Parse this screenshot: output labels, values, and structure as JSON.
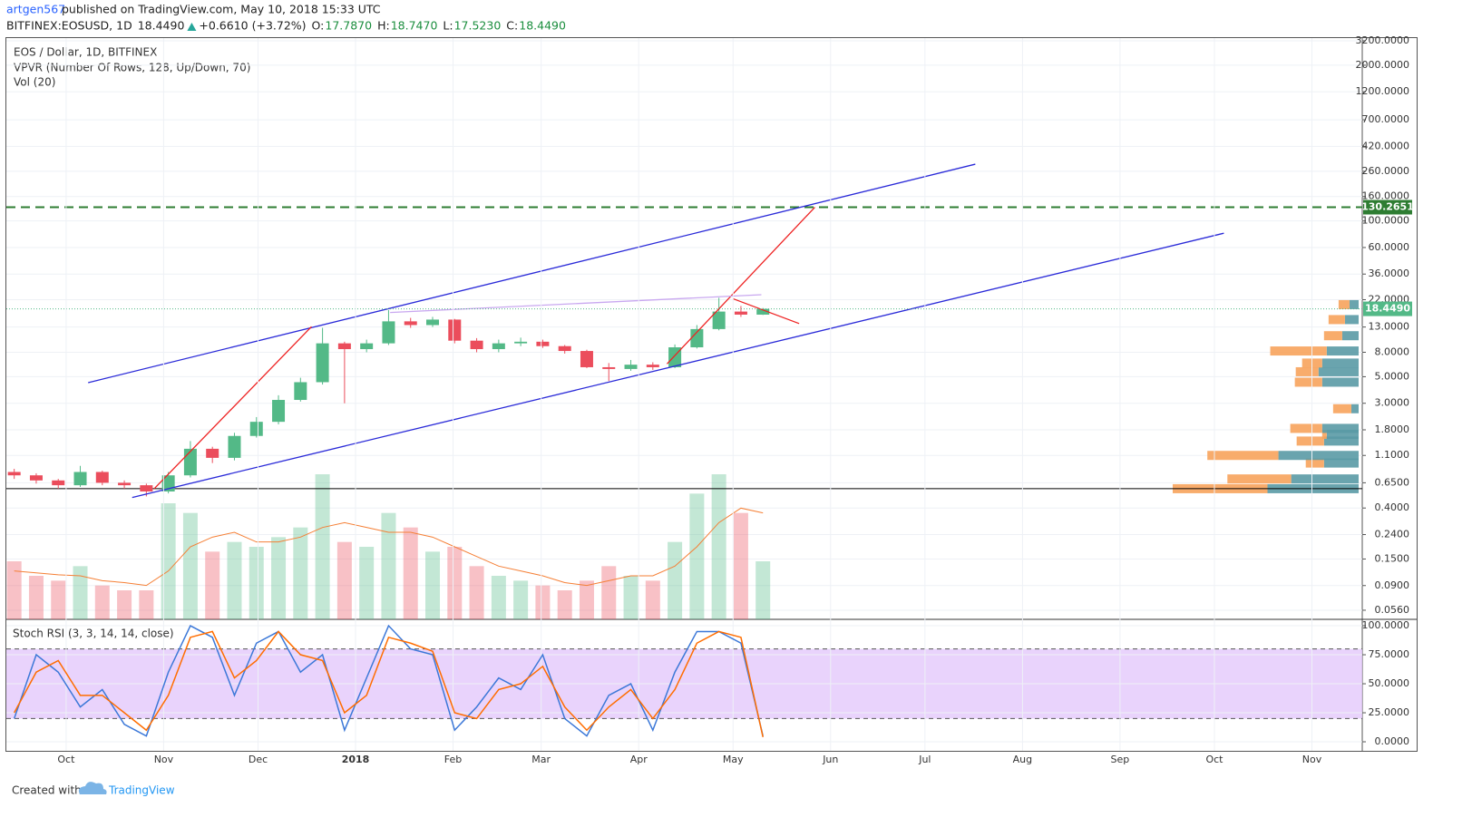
{
  "header": {
    "author": "artgen567",
    "published": "published on TradingView.com, May 10, 2018 15:33 UTC",
    "symbol": "BITFINEX:EOSUSD, 1D",
    "last": "18.4490",
    "change": "+0.6610 (+3.72%)",
    "ohlc": [
      {
        "label": "O:",
        "value": "17.7870"
      },
      {
        "label": "H:",
        "value": "18.7470"
      },
      {
        "label": "L:",
        "value": "17.5230"
      },
      {
        "label": "C:",
        "value": "18.4490"
      }
    ]
  },
  "footer": {
    "created": "Created with",
    "brand": "TradingView"
  },
  "chart_data": [
    {
      "type": "candlestick",
      "title": "EOS / Dollar, 1D, BITFINEX",
      "indicators": [
        "VPVR (Number Of Rows, 128, Up/Down, 70)",
        "Vol (20)"
      ],
      "log_scale": true,
      "grid": true,
      "x": [
        "2017-09-11",
        "2017-09-18",
        "2017-09-25",
        "2017-10-02",
        "2017-10-09",
        "2017-10-16",
        "2017-10-23",
        "2017-10-30",
        "2017-11-06",
        "2017-11-13",
        "2017-11-20",
        "2017-11-27",
        "2017-12-04",
        "2017-12-11",
        "2017-12-18",
        "2017-12-25",
        "2018-01-01",
        "2018-01-08",
        "2018-01-15",
        "2018-01-22",
        "2018-01-29",
        "2018-02-05",
        "2018-02-12",
        "2018-02-19",
        "2018-02-26",
        "2018-03-05",
        "2018-03-12",
        "2018-03-19",
        "2018-03-26",
        "2018-04-02",
        "2018-04-09",
        "2018-04-16",
        "2018-04-23",
        "2018-04-30",
        "2018-05-07"
      ],
      "open": [
        0.8,
        0.75,
        0.68,
        0.62,
        0.8,
        0.65,
        0.62,
        0.55,
        0.75,
        1.25,
        1.05,
        1.6,
        2.1,
        3.2,
        4.5,
        9.5,
        8.5,
        9.5,
        14.5,
        13.5,
        15,
        10,
        8.5,
        9.5,
        9.8,
        9.0,
        8.2,
        6.0,
        5.8,
        6.3,
        6.0,
        8.8,
        12.5,
        17.5,
        16.5
      ],
      "high": [
        0.85,
        0.78,
        0.7,
        0.9,
        0.82,
        0.68,
        0.64,
        0.8,
        1.45,
        1.3,
        1.7,
        2.3,
        3.5,
        4.9,
        12.8,
        9.8,
        10.2,
        18.0,
        15.5,
        15.8,
        15.2,
        10.5,
        10.2,
        10.6,
        10.2,
        9.2,
        8.4,
        6.5,
        6.9,
        6.6,
        9.3,
        13.5,
        22.8,
        19.5,
        18.747
      ],
      "low": [
        0.7,
        0.64,
        0.58,
        0.6,
        0.62,
        0.58,
        0.5,
        0.53,
        0.72,
        0.95,
        1.0,
        1.55,
        2.0,
        3.1,
        4.3,
        3.0,
        8.0,
        9.2,
        12.8,
        13.0,
        9.5,
        8.0,
        8.0,
        9.0,
        8.7,
        7.8,
        5.9,
        4.6,
        5.6,
        5.7,
        5.9,
        8.6,
        12.2,
        15.8,
        16.4
      ],
      "close": [
        0.75,
        0.68,
        0.62,
        0.8,
        0.65,
        0.62,
        0.55,
        0.75,
        1.25,
        1.05,
        1.6,
        2.1,
        3.2,
        4.5,
        9.5,
        8.5,
        9.5,
        14.5,
        13.5,
        15,
        10,
        8.5,
        9.5,
        9.8,
        9.0,
        8.2,
        6.0,
        5.8,
        6.3,
        6.0,
        8.8,
        12.5,
        17.5,
        16.5,
        18.449
      ],
      "up_color": "#53b987",
      "down_color": "#eb4d5c",
      "volume": {
        "values": [
          60,
          45,
          40,
          55,
          35,
          30,
          30,
          120,
          110,
          70,
          80,
          75,
          85,
          95,
          150,
          80,
          75,
          110,
          95,
          70,
          75,
          55,
          45,
          40,
          35,
          30,
          40,
          55,
          45,
          40,
          80,
          130,
          150,
          110,
          60
        ],
        "ma": [
          50,
          48,
          46,
          45,
          40,
          38,
          35,
          50,
          75,
          85,
          90,
          80,
          80,
          85,
          95,
          100,
          95,
          90,
          90,
          85,
          75,
          65,
          55,
          50,
          45,
          38,
          35,
          40,
          45,
          45,
          55,
          75,
          100,
          115,
          110
        ],
        "ma_color": "#f57f35"
      },
      "vpvr": {
        "prices": [
          0.58,
          0.7,
          0.95,
          1.1,
          1.45,
          1.65,
          1.85,
          2.7,
          4.5,
          5.5,
          6.5,
          8.2,
          11,
          15,
          20
        ],
        "up": [
          100,
          74,
          38,
          88,
          38,
          35,
          40,
          8,
          40,
          44,
          40,
          35,
          18,
          15,
          10
        ],
        "down": [
          104,
          70,
          20,
          78,
          30,
          5,
          35,
          20,
          30,
          25,
          22,
          62,
          20,
          18,
          12
        ],
        "up_color": "#5a9aa5",
        "down_color": "#f7a35c"
      },
      "xlim": [
        "2017-09-12",
        "2018-11-17"
      ],
      "ylim": [
        0.047,
        3370
      ],
      "yticks": [
        {
          "value": 3200,
          "label": "3200.0000"
        },
        {
          "value": 2000,
          "label": "2000.0000"
        },
        {
          "value": 1200,
          "label": "1200.0000"
        },
        {
          "value": 700,
          "label": "700.0000"
        },
        {
          "value": 420,
          "label": "420.0000"
        },
        {
          "value": 260,
          "label": "260.0000"
        },
        {
          "value": 160,
          "label": "160.0000"
        },
        {
          "value": 100,
          "label": "100.0000"
        },
        {
          "value": 60,
          "label": "60.0000"
        },
        {
          "value": 36,
          "label": "36.0000"
        },
        {
          "value": 22,
          "label": "22.0000"
        },
        {
          "value": 13,
          "label": "13.0000"
        },
        {
          "value": 8,
          "label": "8.0000"
        },
        {
          "value": 5,
          "label": "5.0000"
        },
        {
          "value": 3,
          "label": "3.0000"
        },
        {
          "value": 1.8,
          "label": "1.8000"
        },
        {
          "value": 1.1,
          "label": "1.1000"
        },
        {
          "value": 0.65,
          "label": "0.6500"
        },
        {
          "value": 0.4,
          "label": "0.4000"
        },
        {
          "value": 0.24,
          "label": "0.2400"
        },
        {
          "value": 0.15,
          "label": "0.1500"
        },
        {
          "value": 0.09,
          "label": "0.0900"
        },
        {
          "value": 0.056,
          "label": "0.0560"
        }
      ],
      "last_price": {
        "value": 18.449,
        "label": "18.4490",
        "color": "#53b987"
      },
      "hlines": [
        {
          "value": 130.2651,
          "color": "#2e7d32",
          "dashed": true
        },
        {
          "value": 0.58,
          "color": "#000000",
          "dashed": false
        }
      ],
      "trendlines": [
        {
          "x": [
            "2017-10-08",
            "2018-07-17"
          ],
          "y": [
            4.46,
            298
          ],
          "color": "#2a2ad8"
        },
        {
          "x": [
            "2017-10-22",
            "2018-10-04"
          ],
          "y": [
            0.49,
            79
          ],
          "color": "#2a2ad8"
        },
        {
          "x": [
            "2017-10-29",
            "2017-12-18"
          ],
          "y": [
            0.58,
            13.1
          ],
          "color": "#ee2222"
        },
        {
          "x": [
            "2018-04-10",
            "2018-05-27"
          ],
          "y": [
            6.4,
            130.2651
          ],
          "color": "#ee2222"
        },
        {
          "x": [
            "2018-05-01",
            "2018-05-22"
          ],
          "y": [
            22.4,
            13.9
          ],
          "color": "#ee2222"
        },
        {
          "x": [
            "2018-01-12",
            "2018-05-10"
          ],
          "y": [
            17.2,
            24.2
          ],
          "color": "#c9a8f0"
        }
      ]
    },
    {
      "type": "line",
      "title": "Stoch RSI (3, 3, 14, 14, close)",
      "x": [
        "2017-09-11",
        "2017-09-18",
        "2017-09-25",
        "2017-10-02",
        "2017-10-09",
        "2017-10-16",
        "2017-10-23",
        "2017-10-30",
        "2017-11-06",
        "2017-11-13",
        "2017-11-20",
        "2017-11-27",
        "2017-12-04",
        "2017-12-11",
        "2017-12-18",
        "2017-12-25",
        "2018-01-01",
        "2018-01-08",
        "2018-01-15",
        "2018-01-22",
        "2018-01-29",
        "2018-02-05",
        "2018-02-12",
        "2018-02-19",
        "2018-02-26",
        "2018-03-05",
        "2018-03-12",
        "2018-03-19",
        "2018-03-26",
        "2018-04-02",
        "2018-04-09",
        "2018-04-16",
        "2018-04-23",
        "2018-04-30",
        "2018-05-07"
      ],
      "series": [
        {
          "color": "#3c78d8",
          "values": [
            20,
            75,
            60,
            30,
            45,
            15,
            5,
            60,
            100,
            90,
            40,
            85,
            95,
            60,
            75,
            10,
            55,
            100,
            80,
            75,
            10,
            30,
            55,
            45,
            75,
            20,
            5,
            40,
            50,
            10,
            60,
            95,
            95,
            85,
            5
          ]
        },
        {
          "color": "#ff6d00",
          "values": [
            25,
            60,
            70,
            40,
            40,
            25,
            10,
            40,
            90,
            95,
            55,
            70,
            95,
            75,
            70,
            25,
            40,
            90,
            85,
            78,
            25,
            20,
            45,
            50,
            65,
            30,
            10,
            30,
            45,
            20,
            45,
            85,
            95,
            90,
            4
          ]
        }
      ],
      "band": [
        20,
        80
      ],
      "band_color": "#e3c8fb",
      "xlim": [
        "2017-09-12",
        "2018-11-17"
      ],
      "ylim": [
        -7.8,
        105.5
      ],
      "yticks": [
        {
          "value": 100,
          "label": "100.0000"
        },
        {
          "value": 75,
          "label": "75.0000"
        },
        {
          "value": 50,
          "label": "50.0000"
        },
        {
          "value": 25,
          "label": "25.0000"
        },
        {
          "value": 0,
          "label": "0.0000"
        }
      ],
      "xticks": [
        {
          "value": "2017-10-01",
          "label": "Oct"
        },
        {
          "value": "2017-11-01",
          "label": "Nov"
        },
        {
          "value": "2017-12-01",
          "label": "Dec"
        },
        {
          "value": "2018-01-01",
          "label": "2018"
        },
        {
          "value": "2018-02-01",
          "label": "Feb"
        },
        {
          "value": "2018-03-01",
          "label": "Mar"
        },
        {
          "value": "2018-04-01",
          "label": "Apr"
        },
        {
          "value": "2018-05-01",
          "label": "May"
        },
        {
          "value": "2018-06-01",
          "label": "Jun"
        },
        {
          "value": "2018-07-01",
          "label": "Jul"
        },
        {
          "value": "2018-08-01",
          "label": "Aug"
        },
        {
          "value": "2018-09-01",
          "label": "Sep"
        },
        {
          "value": "2018-10-01",
          "label": "Oct"
        },
        {
          "value": "2018-11-01",
          "label": "Nov"
        }
      ]
    }
  ]
}
